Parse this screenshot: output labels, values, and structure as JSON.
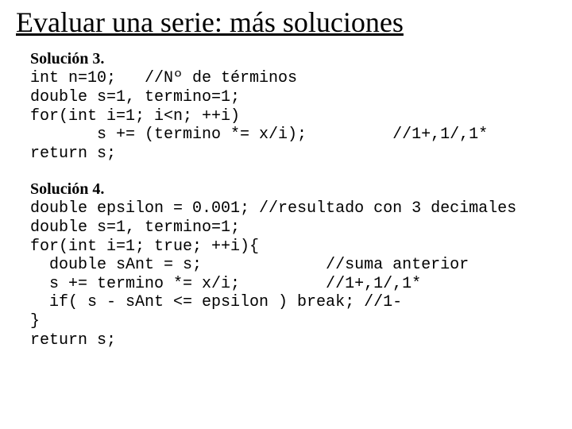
{
  "title": "Evaluar una serie: más soluciones",
  "sol3": {
    "heading": "Solución 3.",
    "line1": "int n=10;   //Nº de términos",
    "line2": "double s=1, termino=1;",
    "line3": "for(int i=1; i<n; ++i)",
    "line4": "       s += (termino *= x/i);         //1+,1/,1*",
    "line5": "return s;"
  },
  "sol4": {
    "heading": "Solución 4.",
    "line1": "double epsilon = 0.001; //resultado con 3 decimales",
    "line2": "double s=1, termino=1;",
    "line3": "for(int i=1; true; ++i){",
    "line4": "  double sAnt = s;             //suma anterior",
    "line5": "  s += termino *= x/i;         //1+,1/,1*",
    "line6": "  if( s - sAnt <= epsilon ) break; //1-",
    "line7": "}",
    "line8": "return s;"
  }
}
